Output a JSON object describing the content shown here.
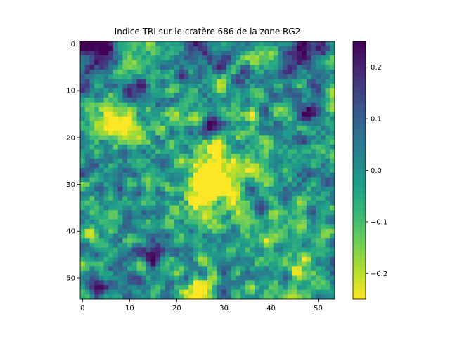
{
  "chart_data": {
    "type": "heatmap",
    "title": "Indice TRI sur le cratère 686 de la zone RG2",
    "xlabel": "",
    "ylabel": "",
    "rows": 55,
    "cols": 54,
    "x_ticks": [
      0,
      10,
      20,
      30,
      40,
      50
    ],
    "y_ticks": [
      0,
      10,
      20,
      30,
      40,
      50
    ],
    "colormap": "viridis_r",
    "colorbar": {
      "vmin": -0.25,
      "vmax": 0.25,
      "ticks": [
        0.2,
        0.1,
        0.0,
        -0.1,
        -0.2
      ],
      "tick_labels": [
        "0.2",
        "0.1",
        "0.0",
        "−0.1",
        "−0.2"
      ]
    },
    "grid": false,
    "estimated_features": [
      {
        "region": "rows 0-5, cols 0-54",
        "value": 0.22
      },
      {
        "region": "rows 28-36, cols 24-32",
        "value": -0.25
      },
      {
        "region": "rows 15-20, cols 4-10",
        "value": -0.24
      },
      {
        "region": "rows 52-54, cols 21-26",
        "value": -0.24
      },
      {
        "region": "rows 16-19, cols 26-31",
        "value": 0.2
      },
      {
        "region": "rows 13-17, cols 46-50",
        "value": 0.2
      }
    ]
  }
}
